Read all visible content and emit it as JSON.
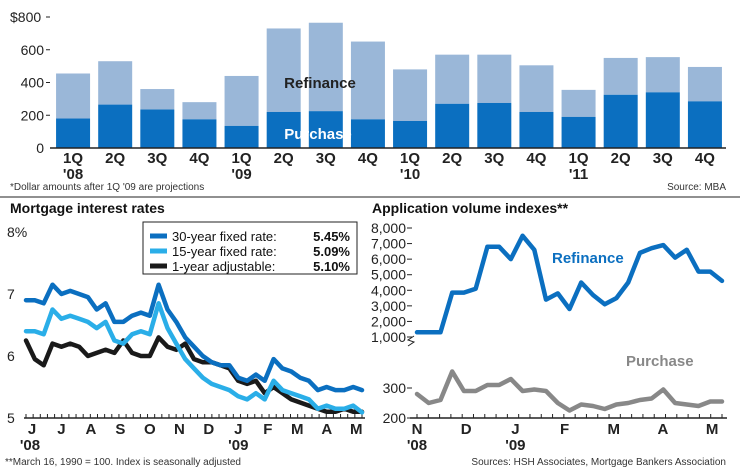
{
  "chart_data": [
    {
      "type": "bar",
      "stacked": true,
      "y_unit_label": "$800",
      "ylim": [
        0,
        800
      ],
      "yticks": [
        "$800",
        "600",
        "400",
        "200",
        "0"
      ],
      "categories": [
        "1Q '08",
        "2Q",
        "3Q",
        "4Q",
        "1Q '09",
        "2Q",
        "3Q",
        "4Q",
        "1Q '10",
        "2Q",
        "3Q",
        "4Q",
        "1Q '11",
        "2Q",
        "3Q",
        "4Q"
      ],
      "category_labels": [
        [
          "1Q",
          "'08"
        ],
        [
          "2Q",
          ""
        ],
        [
          "3Q",
          ""
        ],
        [
          "4Q",
          ""
        ],
        [
          "1Q",
          "'09"
        ],
        [
          "2Q",
          ""
        ],
        [
          "3Q",
          ""
        ],
        [
          "4Q",
          ""
        ],
        [
          "1Q",
          "'10"
        ],
        [
          "2Q",
          ""
        ],
        [
          "3Q",
          ""
        ],
        [
          "4Q",
          ""
        ],
        [
          "1Q",
          "'11"
        ],
        [
          "2Q",
          ""
        ],
        [
          "3Q",
          ""
        ],
        [
          "4Q",
          ""
        ]
      ],
      "series": [
        {
          "name": "Purchase",
          "color": "#0b6fc0",
          "values": [
            180,
            265,
            235,
            175,
            135,
            220,
            225,
            175,
            165,
            270,
            275,
            220,
            190,
            325,
            340,
            285
          ]
        },
        {
          "name": "Refinance",
          "color": "#9ab7d8",
          "values": [
            275,
            265,
            125,
            105,
            305,
            510,
            540,
            475,
            315,
            300,
            295,
            285,
            165,
            225,
            215,
            210
          ]
        }
      ],
      "series_labels": [
        "Refinance",
        "Purchase"
      ],
      "footnote": "*Dollar amounts after 1Q '09 are projections",
      "source": "Source: MBA"
    },
    {
      "type": "line",
      "title": "Mortgage interest rates",
      "y_top_label": "8%",
      "yticks": [
        "8%",
        "7",
        "6",
        "5"
      ],
      "ylim": [
        5,
        8
      ],
      "x_labels": [
        "J",
        "J",
        "A",
        "S",
        "O",
        "N",
        "D",
        "J",
        "F",
        "M",
        "A",
        "M"
      ],
      "x_year_labels": [
        "'08",
        "'09"
      ],
      "legend": [
        {
          "label": "30-year fixed rate:",
          "value": "5.45%",
          "color": "#0b6fc0"
        },
        {
          "label": "15-year fixed rate:",
          "value": "5.09%",
          "color": "#2aaee8"
        },
        {
          "label": "1-year adjustable:",
          "value": "5.10%",
          "color": "#1a1a1a"
        }
      ],
      "series": [
        {
          "name": "30-year fixed rate",
          "color": "#0b6fc0",
          "values": [
            6.9,
            6.9,
            6.85,
            7.15,
            7.0,
            7.05,
            7.0,
            6.95,
            6.75,
            6.85,
            6.55,
            6.55,
            6.65,
            6.7,
            6.65,
            7.15,
            6.75,
            6.55,
            6.3,
            6.15,
            6.0,
            5.9,
            5.85,
            5.85,
            5.65,
            5.6,
            5.7,
            5.6,
            5.95,
            5.8,
            5.75,
            5.65,
            5.6,
            5.45,
            5.5,
            5.45,
            5.45,
            5.5,
            5.45
          ]
        },
        {
          "name": "15-year fixed rate",
          "color": "#2aaee8",
          "values": [
            6.4,
            6.4,
            6.35,
            6.75,
            6.6,
            6.65,
            6.6,
            6.55,
            6.45,
            6.55,
            6.25,
            6.2,
            6.35,
            6.4,
            6.35,
            6.85,
            6.45,
            6.2,
            5.95,
            5.8,
            5.65,
            5.55,
            5.5,
            5.45,
            5.35,
            5.3,
            5.4,
            5.3,
            5.6,
            5.45,
            5.4,
            5.35,
            5.3,
            5.15,
            5.2,
            5.15,
            5.15,
            5.2,
            5.09
          ]
        },
        {
          "name": "1-year adjustable",
          "color": "#1a1a1a",
          "values": [
            6.25,
            5.95,
            5.85,
            6.2,
            6.15,
            6.2,
            6.15,
            6.0,
            6.05,
            6.1,
            6.05,
            6.25,
            6.05,
            6.0,
            6.0,
            6.3,
            6.15,
            6.1,
            6.2,
            5.95,
            5.9,
            5.9,
            5.85,
            5.8,
            5.6,
            5.55,
            5.6,
            5.4,
            5.5,
            5.4,
            5.3,
            5.25,
            5.2,
            5.15,
            5.1,
            5.1,
            5.15,
            5.1,
            5.1
          ]
        }
      ],
      "footnote": "**March 16, 1990 = 100. Index is seasonally adjusted"
    },
    {
      "type": "line",
      "title": "Application volume indexes**",
      "yticks_upper": [
        "8,000",
        "7,000",
        "6,000",
        "5,000",
        "4,000",
        "3,000",
        "2,000",
        "1,000"
      ],
      "ylim_upper": [
        1000,
        8000
      ],
      "yticks_lower": [
        "300",
        "200"
      ],
      "ylim_lower": [
        200,
        350
      ],
      "x_labels": [
        "N",
        "D",
        "J",
        "F",
        "M",
        "A",
        "M"
      ],
      "x_year_labels": [
        "'08",
        "'09"
      ],
      "series": [
        {
          "name": "Refinance",
          "color": "#0b6fc0",
          "values": [
            1300,
            1300,
            1300,
            3850,
            3850,
            4100,
            6800,
            6800,
            6000,
            7500,
            6600,
            3400,
            3800,
            2800,
            4500,
            3700,
            3100,
            3500,
            4500,
            6400,
            6700,
            6900,
            6100,
            6600,
            5200,
            5200,
            4600
          ]
        },
        {
          "name": "Purchase",
          "color": "#888888",
          "values": [
            280,
            250,
            260,
            355,
            290,
            290,
            310,
            310,
            330,
            290,
            295,
            290,
            250,
            225,
            245,
            240,
            230,
            245,
            250,
            260,
            265,
            295,
            250,
            245,
            240,
            255,
            255
          ]
        }
      ],
      "source": "Sources: HSH Associates, Mortgage Bankers Association"
    }
  ]
}
